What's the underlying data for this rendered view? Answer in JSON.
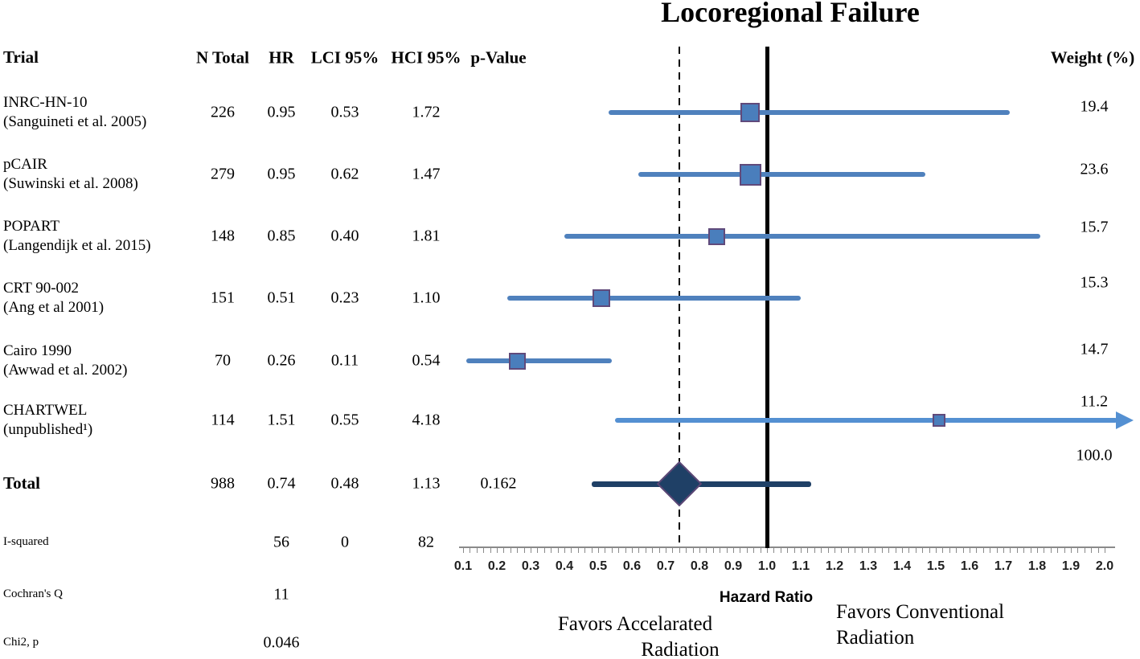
{
  "title": "Locoregional Failure",
  "headers": {
    "trial": "Trial",
    "n_total": "N Total",
    "hr": "HR",
    "lci": "LCI 95%",
    "hci": "HCI 95%",
    "p_value": "p-Value",
    "weight": "Weight (%)"
  },
  "footer": {
    "favors_left": [
      "Favors Accelarated",
      "Radiation"
    ],
    "favors_right": [
      "Favors Conventional",
      "Radiation"
    ]
  },
  "chart_data": {
    "type": "forest",
    "title": "Locoregional Failure",
    "xlabel": "Hazard Ratio",
    "xlim": [
      0.1,
      2.0
    ],
    "x_major_tick": 0.1,
    "x_minor_tick": 0.02,
    "reference_line": 1.0,
    "pooled_dashed_line": 0.74,
    "studies": [
      {
        "trial": "INRC-HN-10",
        "citation": "(Sanguineti et al. 2005)",
        "n_total": 226,
        "hr": 0.95,
        "lci": 0.53,
        "hci": 1.72,
        "weight": 19.4
      },
      {
        "trial": "pCAIR",
        "citation": "(Suwinski et al. 2008)",
        "n_total": 279,
        "hr": 0.95,
        "lci": 0.62,
        "hci": 1.47,
        "weight": 23.6
      },
      {
        "trial": "POPART",
        "citation": "(Langendijk et al. 2015)",
        "n_total": 148,
        "hr": 0.85,
        "lci": 0.4,
        "hci": 1.81,
        "weight": 15.7
      },
      {
        "trial": "CRT 90-002",
        "citation": "(Ang et al 2001)",
        "n_total": 151,
        "hr": 0.51,
        "lci": 0.23,
        "hci": 1.1,
        "weight": 15.3
      },
      {
        "trial": "Cairo 1990",
        "citation": "(Awwad et al. 2002)",
        "n_total": 70,
        "hr": 0.26,
        "lci": 0.11,
        "hci": 0.54,
        "weight": 14.7
      },
      {
        "trial": "CHARTWEL",
        "citation": "(unpublished¹)",
        "n_total": 114,
        "hr": 1.51,
        "lci": 0.55,
        "hci": 4.18,
        "weight": 11.2,
        "ci_exceeds_axis": true
      }
    ],
    "total": {
      "label": "Total",
      "n_total": 988,
      "hr": 0.74,
      "lci": 0.48,
      "hci": 1.13,
      "p_value": "0.162",
      "weight": 100.0
    },
    "heterogeneity": [
      {
        "label": "I-squared",
        "values": {
          "hr": "56",
          "lci": "0",
          "hci": "82"
        }
      },
      {
        "label": "Cochran's Q",
        "values": {
          "hr": "11"
        }
      },
      {
        "label": "Chi2, p",
        "values": {
          "hr": "0.046"
        }
      }
    ]
  },
  "colors": {
    "ci_line": "#4F81BD",
    "marker_fill": "#4A7EBC",
    "marker_border": "#604A7B",
    "chartwel_line": "#5490D2",
    "total_line": "#1F4066",
    "diamond_fill": "#1F4066",
    "diamond_border": "#5C4776",
    "axis": "#8A8A8A",
    "reference_line_color": "#000000"
  }
}
